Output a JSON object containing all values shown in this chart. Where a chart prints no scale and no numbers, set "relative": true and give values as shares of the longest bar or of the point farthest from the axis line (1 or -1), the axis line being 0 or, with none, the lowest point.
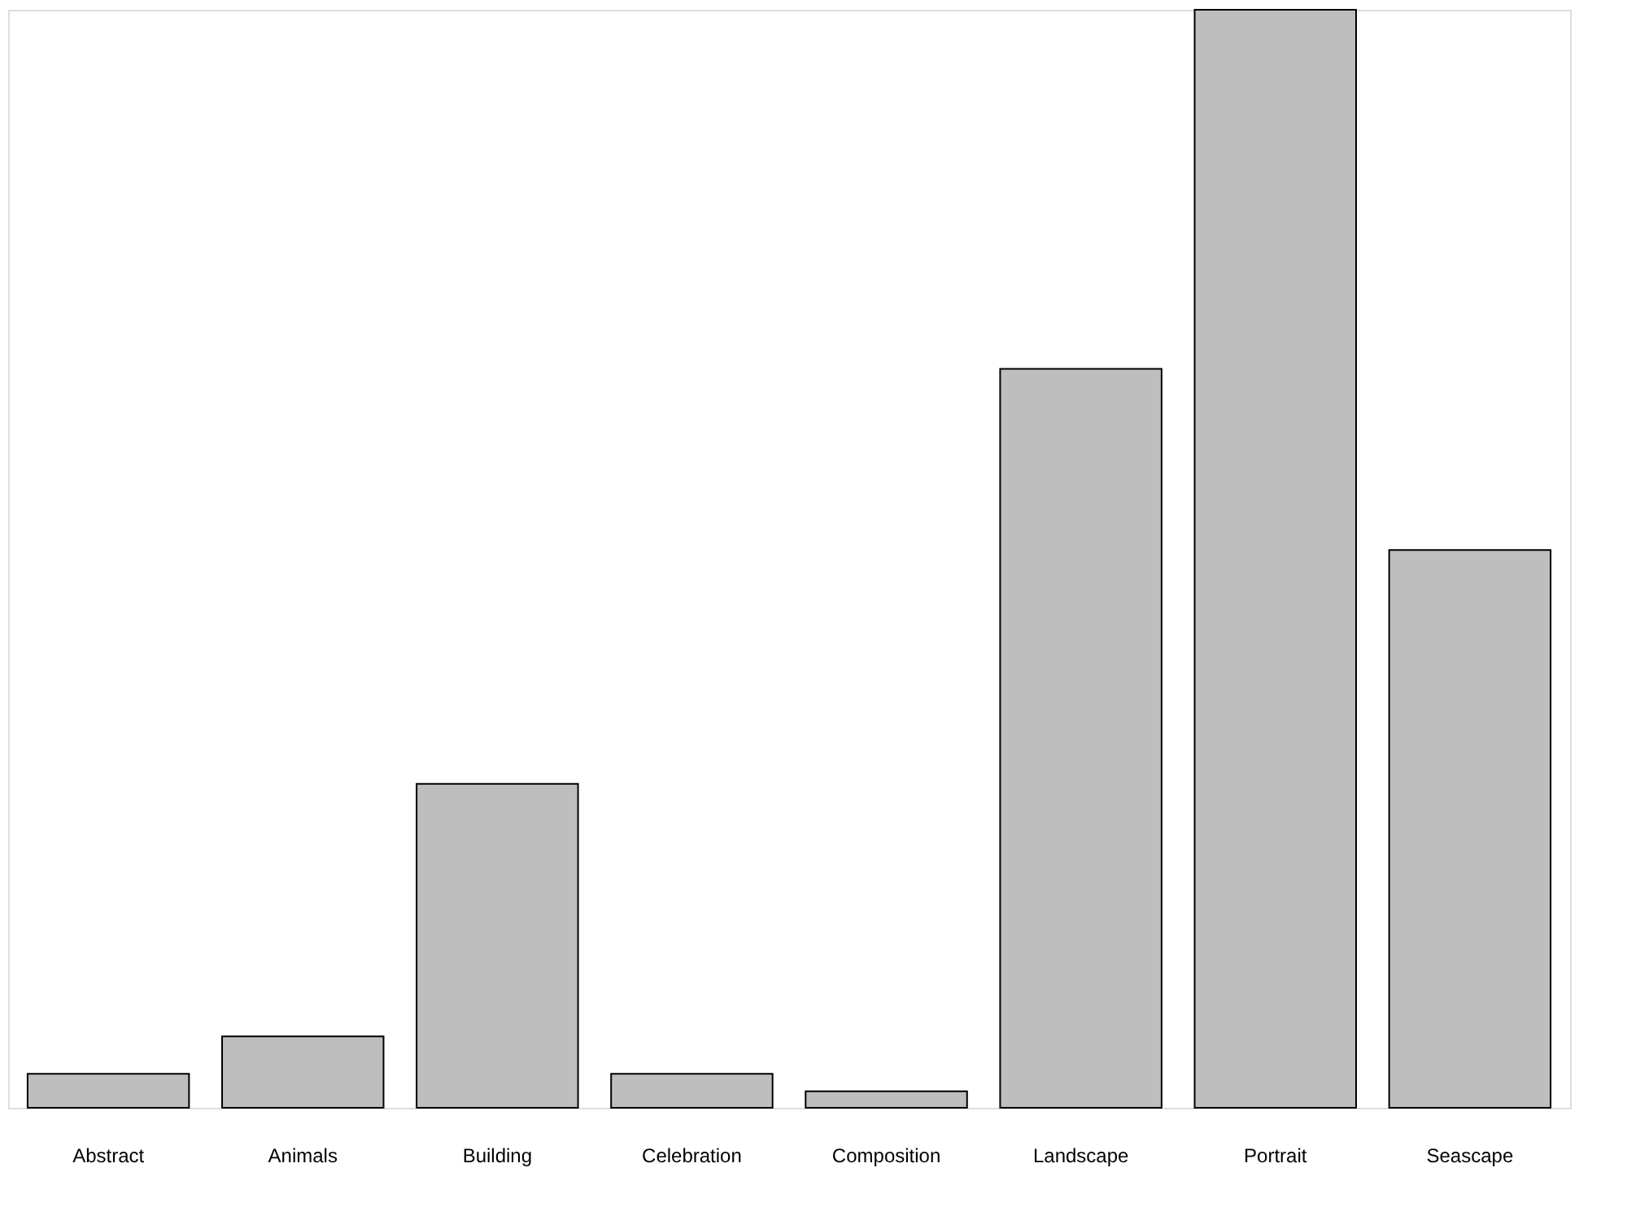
{
  "chart_data": {
    "type": "bar",
    "relative": true,
    "color": "#bebebe",
    "categories": [
      "Abstract",
      "Animals",
      "Building",
      "Celebration",
      "Composition",
      "Landscape",
      "Portrait",
      "Seascape"
    ],
    "values": [
      0.031,
      0.065,
      0.295,
      0.031,
      0.015,
      0.673,
      1,
      0.508
    ]
  }
}
